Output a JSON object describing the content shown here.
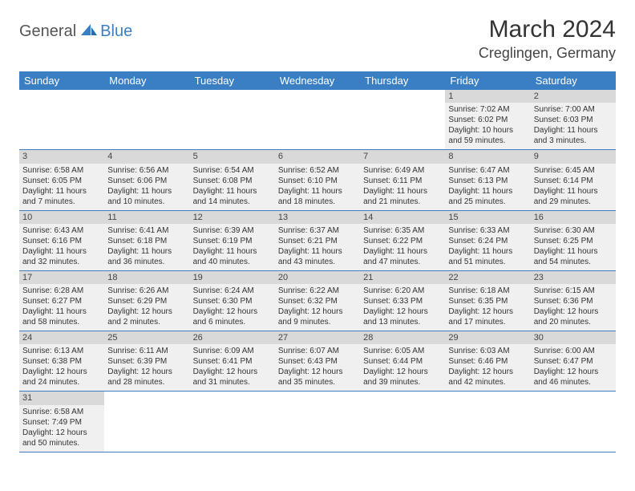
{
  "logo": {
    "part1": "General",
    "part2": "Blue"
  },
  "title": "March 2024",
  "location": "Creglingen, Germany",
  "colors": {
    "header_bg": "#3a7fc4",
    "header_fg": "#ffffff",
    "daynum_bg": "#d9d9d9",
    "cell_bg": "#f0f0f0",
    "row_border": "#3a7fc4",
    "logo_blue": "#3a7fc4"
  },
  "day_headers": [
    "Sunday",
    "Monday",
    "Tuesday",
    "Wednesday",
    "Thursday",
    "Friday",
    "Saturday"
  ],
  "weeks": [
    [
      null,
      null,
      null,
      null,
      null,
      {
        "d": "1",
        "sr": "7:02 AM",
        "ss": "6:02 PM",
        "dl": "10 hours and 59 minutes."
      },
      {
        "d": "2",
        "sr": "7:00 AM",
        "ss": "6:03 PM",
        "dl": "11 hours and 3 minutes."
      }
    ],
    [
      {
        "d": "3",
        "sr": "6:58 AM",
        "ss": "6:05 PM",
        "dl": "11 hours and 7 minutes."
      },
      {
        "d": "4",
        "sr": "6:56 AM",
        "ss": "6:06 PM",
        "dl": "11 hours and 10 minutes."
      },
      {
        "d": "5",
        "sr": "6:54 AM",
        "ss": "6:08 PM",
        "dl": "11 hours and 14 minutes."
      },
      {
        "d": "6",
        "sr": "6:52 AM",
        "ss": "6:10 PM",
        "dl": "11 hours and 18 minutes."
      },
      {
        "d": "7",
        "sr": "6:49 AM",
        "ss": "6:11 PM",
        "dl": "11 hours and 21 minutes."
      },
      {
        "d": "8",
        "sr": "6:47 AM",
        "ss": "6:13 PM",
        "dl": "11 hours and 25 minutes."
      },
      {
        "d": "9",
        "sr": "6:45 AM",
        "ss": "6:14 PM",
        "dl": "11 hours and 29 minutes."
      }
    ],
    [
      {
        "d": "10",
        "sr": "6:43 AM",
        "ss": "6:16 PM",
        "dl": "11 hours and 32 minutes."
      },
      {
        "d": "11",
        "sr": "6:41 AM",
        "ss": "6:18 PM",
        "dl": "11 hours and 36 minutes."
      },
      {
        "d": "12",
        "sr": "6:39 AM",
        "ss": "6:19 PM",
        "dl": "11 hours and 40 minutes."
      },
      {
        "d": "13",
        "sr": "6:37 AM",
        "ss": "6:21 PM",
        "dl": "11 hours and 43 minutes."
      },
      {
        "d": "14",
        "sr": "6:35 AM",
        "ss": "6:22 PM",
        "dl": "11 hours and 47 minutes."
      },
      {
        "d": "15",
        "sr": "6:33 AM",
        "ss": "6:24 PM",
        "dl": "11 hours and 51 minutes."
      },
      {
        "d": "16",
        "sr": "6:30 AM",
        "ss": "6:25 PM",
        "dl": "11 hours and 54 minutes."
      }
    ],
    [
      {
        "d": "17",
        "sr": "6:28 AM",
        "ss": "6:27 PM",
        "dl": "11 hours and 58 minutes."
      },
      {
        "d": "18",
        "sr": "6:26 AM",
        "ss": "6:29 PM",
        "dl": "12 hours and 2 minutes."
      },
      {
        "d": "19",
        "sr": "6:24 AM",
        "ss": "6:30 PM",
        "dl": "12 hours and 6 minutes."
      },
      {
        "d": "20",
        "sr": "6:22 AM",
        "ss": "6:32 PM",
        "dl": "12 hours and 9 minutes."
      },
      {
        "d": "21",
        "sr": "6:20 AM",
        "ss": "6:33 PM",
        "dl": "12 hours and 13 minutes."
      },
      {
        "d": "22",
        "sr": "6:18 AM",
        "ss": "6:35 PM",
        "dl": "12 hours and 17 minutes."
      },
      {
        "d": "23",
        "sr": "6:15 AM",
        "ss": "6:36 PM",
        "dl": "12 hours and 20 minutes."
      }
    ],
    [
      {
        "d": "24",
        "sr": "6:13 AM",
        "ss": "6:38 PM",
        "dl": "12 hours and 24 minutes."
      },
      {
        "d": "25",
        "sr": "6:11 AM",
        "ss": "6:39 PM",
        "dl": "12 hours and 28 minutes."
      },
      {
        "d": "26",
        "sr": "6:09 AM",
        "ss": "6:41 PM",
        "dl": "12 hours and 31 minutes."
      },
      {
        "d": "27",
        "sr": "6:07 AM",
        "ss": "6:43 PM",
        "dl": "12 hours and 35 minutes."
      },
      {
        "d": "28",
        "sr": "6:05 AM",
        "ss": "6:44 PM",
        "dl": "12 hours and 39 minutes."
      },
      {
        "d": "29",
        "sr": "6:03 AM",
        "ss": "6:46 PM",
        "dl": "12 hours and 42 minutes."
      },
      {
        "d": "30",
        "sr": "6:00 AM",
        "ss": "6:47 PM",
        "dl": "12 hours and 46 minutes."
      }
    ],
    [
      {
        "d": "31",
        "sr": "6:58 AM",
        "ss": "7:49 PM",
        "dl": "12 hours and 50 minutes."
      },
      null,
      null,
      null,
      null,
      null,
      null
    ]
  ],
  "labels": {
    "sunrise": "Sunrise:",
    "sunset": "Sunset:",
    "daylight": "Daylight:"
  }
}
